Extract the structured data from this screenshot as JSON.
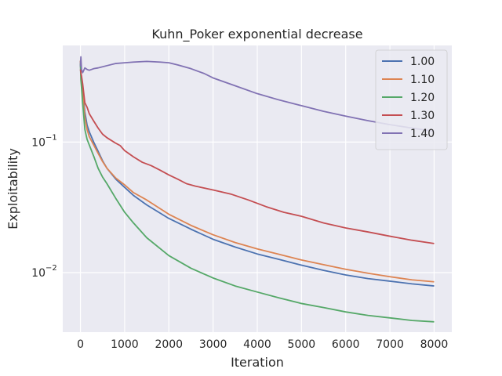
{
  "chart_data": {
    "type": "line",
    "title": "Kuhn_Poker exponential decrease",
    "xlabel": "Iteration",
    "ylabel": "Exploitability",
    "xlim": [
      -400,
      8400
    ],
    "ylim": [
      0.0035,
      0.55
    ],
    "yscale": "log",
    "x_ticks": [
      0,
      1000,
      2000,
      3000,
      4000,
      5000,
      6000,
      7000,
      8000
    ],
    "x_tick_labels": [
      "0",
      "1000",
      "2000",
      "3000",
      "4000",
      "5000",
      "6000",
      "7000",
      "8000"
    ],
    "y_ticks": [
      0.1,
      0.01
    ],
    "y_tick_base": "10",
    "y_tick_exps": [
      "−1",
      "−2"
    ],
    "grid": true,
    "legend_position": "top-right",
    "series": [
      {
        "name": "1.00",
        "color": "#4c72b0",
        "x": [
          0,
          10,
          25,
          50,
          100,
          150,
          200,
          300,
          400,
          500,
          600,
          800,
          1000,
          1200,
          1500,
          2000,
          2500,
          3000,
          3500,
          4000,
          4500,
          5000,
          5500,
          6000,
          6500,
          7000,
          7500,
          8000
        ],
        "y": [
          0.42,
          0.33,
          0.3,
          0.25,
          0.17,
          0.135,
          0.12,
          0.1,
          0.085,
          0.072,
          0.063,
          0.052,
          0.045,
          0.039,
          0.033,
          0.026,
          0.0215,
          0.018,
          0.0157,
          0.0139,
          0.0126,
          0.0114,
          0.0104,
          0.0096,
          0.009,
          0.0086,
          0.0082,
          0.0079
        ]
      },
      {
        "name": "1.10",
        "color": "#dd8452",
        "x": [
          0,
          10,
          25,
          50,
          100,
          150,
          200,
          300,
          400,
          500,
          600,
          800,
          1000,
          1200,
          1500,
          2000,
          2500,
          3000,
          3500,
          4000,
          4500,
          5000,
          5500,
          6000,
          6500,
          7000,
          7500,
          8000
        ],
        "y": [
          0.42,
          0.33,
          0.3,
          0.24,
          0.155,
          0.125,
          0.11,
          0.095,
          0.082,
          0.071,
          0.063,
          0.053,
          0.047,
          0.041,
          0.036,
          0.028,
          0.023,
          0.0195,
          0.017,
          0.0152,
          0.0138,
          0.0125,
          0.0115,
          0.0106,
          0.0099,
          0.0093,
          0.0088,
          0.0085
        ]
      },
      {
        "name": "1.20",
        "color": "#55a868",
        "x": [
          0,
          10,
          25,
          50,
          100,
          150,
          200,
          300,
          400,
          500,
          600,
          800,
          1000,
          1200,
          1500,
          2000,
          2500,
          3000,
          3500,
          4000,
          4500,
          5000,
          5500,
          6000,
          6500,
          7000,
          7500,
          8000
        ],
        "y": [
          0.4,
          0.3,
          0.26,
          0.2,
          0.125,
          0.105,
          0.095,
          0.078,
          0.063,
          0.054,
          0.048,
          0.037,
          0.029,
          0.024,
          0.0185,
          0.0135,
          0.0108,
          0.0091,
          0.0079,
          0.0071,
          0.0064,
          0.0058,
          0.0054,
          0.005,
          0.0047,
          0.0045,
          0.0043,
          0.0042
        ]
      },
      {
        "name": "1.30",
        "color": "#c44e52",
        "x": [
          0,
          10,
          25,
          50,
          100,
          150,
          200,
          300,
          400,
          500,
          600,
          800,
          900,
          1000,
          1200,
          1400,
          1600,
          1800,
          2000,
          2200,
          2400,
          2600,
          3000,
          3400,
          3800,
          4200,
          4600,
          5000,
          5500,
          6000,
          6500,
          7000,
          7500,
          8000
        ],
        "y": [
          0.36,
          0.34,
          0.32,
          0.28,
          0.2,
          0.185,
          0.165,
          0.145,
          0.128,
          0.115,
          0.108,
          0.098,
          0.094,
          0.086,
          0.077,
          0.07,
          0.066,
          0.061,
          0.056,
          0.052,
          0.048,
          0.046,
          0.043,
          0.04,
          0.036,
          0.032,
          0.029,
          0.027,
          0.024,
          0.022,
          0.0205,
          0.019,
          0.0177,
          0.0167
        ]
      },
      {
        "name": "1.40",
        "color": "#8172b3",
        "x": [
          0,
          10,
          25,
          50,
          100,
          150,
          200,
          300,
          400,
          600,
          800,
          1000,
          1200,
          1500,
          1800,
          2000,
          2200,
          2500,
          2800,
          3000,
          3500,
          4000,
          4500,
          5000,
          5500,
          6000,
          6500,
          7000,
          7500,
          8000
        ],
        "y": [
          0.38,
          0.45,
          0.36,
          0.34,
          0.37,
          0.36,
          0.355,
          0.365,
          0.37,
          0.385,
          0.4,
          0.405,
          0.41,
          0.415,
          0.41,
          0.405,
          0.39,
          0.365,
          0.335,
          0.31,
          0.27,
          0.235,
          0.21,
          0.19,
          0.172,
          0.158,
          0.146,
          0.136,
          0.128,
          0.121
        ]
      }
    ]
  }
}
